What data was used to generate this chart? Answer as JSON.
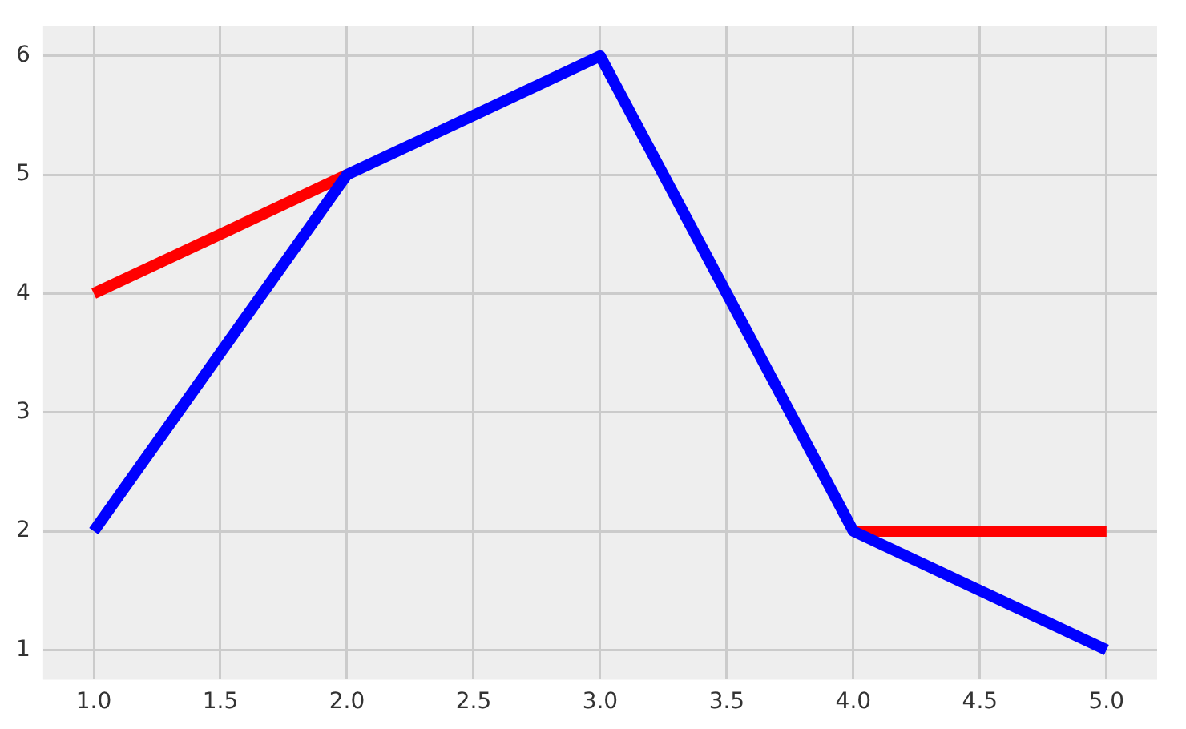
{
  "chart_data": {
    "type": "line",
    "x": [
      1,
      2,
      3,
      4,
      5
    ],
    "series": [
      {
        "color": "#ff0000",
        "values": [
          4,
          5,
          null,
          2,
          2
        ]
      },
      {
        "color": "#0000ff",
        "values": [
          2,
          5,
          6,
          2,
          1
        ]
      }
    ],
    "xlim": [
      0.8,
      5.2
    ],
    "xticks": [
      {
        "value": 1,
        "label": "1.0"
      },
      {
        "value": 1.5,
        "label": "1.5"
      },
      {
        "value": 2,
        "label": "2.0"
      },
      {
        "value": 2.5,
        "label": "2.5"
      },
      {
        "value": 3,
        "label": "3.0"
      },
      {
        "value": 3.5,
        "label": "3.5"
      },
      {
        "value": 4,
        "label": "4.0"
      },
      {
        "value": 4.5,
        "label": "4.5"
      },
      {
        "value": 5,
        "label": "5.0"
      }
    ],
    "ylim": [
      0.75,
      6.25
    ],
    "yticks": [
      1,
      2,
      3,
      4,
      5,
      6
    ],
    "grid": true,
    "marker": "none",
    "line_style": "solid",
    "legend": false
  }
}
